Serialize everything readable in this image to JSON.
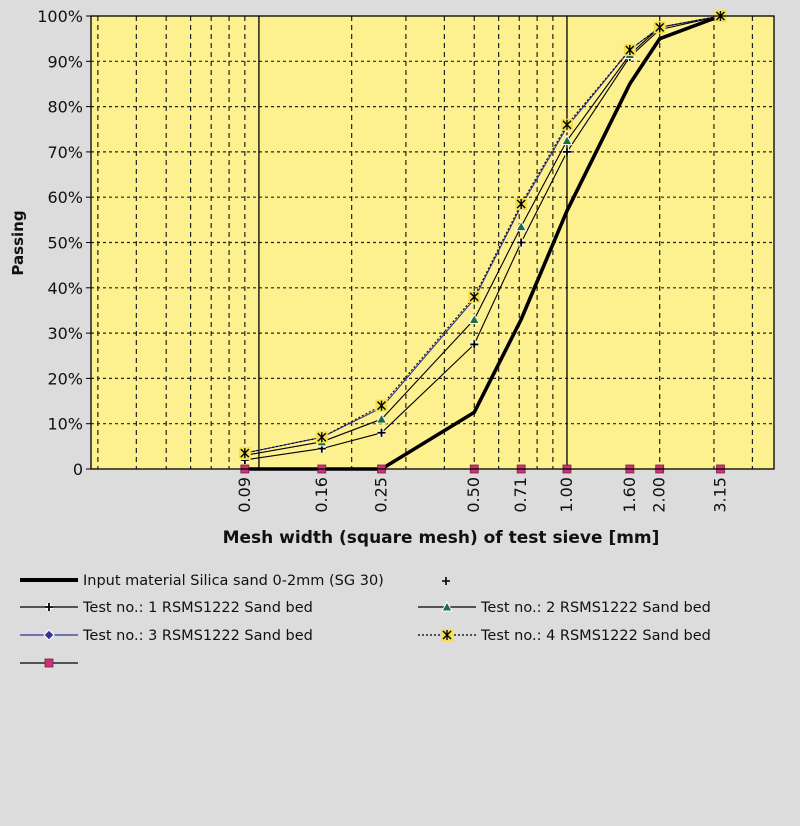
{
  "chart_data": {
    "type": "line",
    "x_scale": "log",
    "xlabel": "Mesh width (square mesh) of test sieve [mm]",
    "ylabel": "Passing",
    "ylim": [
      0,
      100
    ],
    "xlim": [
      0.0285,
      4.7
    ],
    "y_ticks": [
      "0",
      "10%",
      "20%",
      "30%",
      "40%",
      "50%",
      "60%",
      "70%",
      "80%",
      "90%",
      "100%"
    ],
    "x_tick_values": [
      0.09,
      0.16,
      0.25,
      0.5,
      0.71,
      1.0,
      1.6,
      2.0,
      3.15
    ],
    "x_tick_labels": [
      "0.09",
      "0.16",
      "0.25",
      "0.50",
      "0.71",
      "1.00",
      "1.60",
      "2.00",
      "3.15"
    ],
    "grid": true,
    "plot_background": "#fdf08e",
    "series": [
      {
        "name": "Input material Silica sand 0-2mm (SG 30)",
        "marker": "none",
        "color": "#000000",
        "x": [
          0.09,
          0.16,
          0.25,
          0.5,
          0.71,
          1.0,
          1.6,
          2.0,
          3.15
        ],
        "y": [
          0,
          0,
          0,
          12.5,
          33,
          57,
          85,
          95,
          100
        ]
      },
      {
        "name": "Test no.: 1 RSMS1222 Sand bed",
        "marker": "plus",
        "color": "#000000",
        "x": [
          0.09,
          0.16,
          0.25,
          0.5,
          0.71,
          1.0,
          1.6,
          2.0,
          3.15
        ],
        "y": [
          2,
          4.5,
          8,
          27.5,
          50,
          70,
          91,
          97,
          100
        ]
      },
      {
        "name": "Test no.: 2 RSMS1222 Sand bed",
        "marker": "triangle",
        "color": "#1e6e3c",
        "x": [
          0.09,
          0.16,
          0.25,
          0.5,
          0.71,
          1.0,
          1.6,
          2.0,
          3.15
        ],
        "y": [
          3,
          6,
          11,
          33,
          53.5,
          72.5,
          91.5,
          97.5,
          100
        ]
      },
      {
        "name": "Test no.: 3 RSMS1222 Sand bed",
        "marker": "diamond",
        "color": "#333399",
        "x": [
          0.09,
          0.16,
          0.25,
          0.5,
          0.71,
          1.0,
          1.6,
          2.0,
          3.15
        ],
        "y": [
          3.5,
          7,
          13.5,
          37.5,
          58,
          75.5,
          92.5,
          97.5,
          100
        ]
      },
      {
        "name": "Test no.: 4 RSMS1222 Sand bed",
        "marker": "asterisk",
        "color": "#000000",
        "x": [
          0.09,
          0.16,
          0.25,
          0.5,
          0.71,
          1.0,
          1.6,
          2.0,
          3.15
        ],
        "y": [
          3.5,
          7,
          14,
          38,
          58.5,
          76,
          92.5,
          97.5,
          100
        ]
      },
      {
        "name": "",
        "marker": "square",
        "color": "#cc3377",
        "x": [
          0.09,
          0.16,
          0.25,
          0.5,
          0.71,
          1.0,
          1.6,
          2.0,
          3.15
        ],
        "y": [
          0,
          0,
          0,
          0,
          0,
          0,
          0,
          0,
          0
        ]
      }
    ],
    "legend": {
      "placement": "bottom",
      "entries": [
        "Input material Silica sand 0-2mm (SG 30)",
        "Test no.: 1 RSMS1222 Sand bed",
        "Test no.: 2 RSMS1222 Sand bed",
        "Test no.: 3 RSMS1222 Sand bed",
        "Test no.: 4 RSMS1222 Sand bed",
        ""
      ]
    }
  }
}
